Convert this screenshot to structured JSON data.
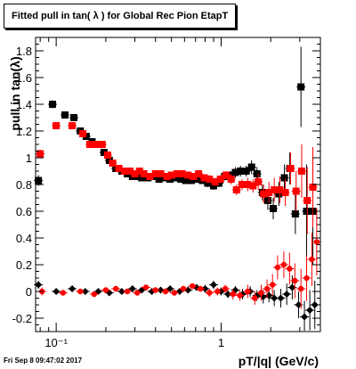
{
  "title": "Fitted pull in tan( λ ) for Global Rec Pion EtapT",
  "footer_timestamp": "Fri Sep  8 09:47:02 2017",
  "chart_data": {
    "type": "scatter",
    "title": "Fitted pull in tan( λ ) for Global Rec Pion EtapT",
    "xlabel": "pT/|q| (GeV/c)",
    "ylabel": "pull in tan(λ)",
    "x_scale": "log",
    "xlim": [
      0.075,
      4.0
    ],
    "ylim": [
      -0.3,
      1.9
    ],
    "grid": false,
    "y_ticks": [
      "-0.2",
      "0",
      "0.2",
      "0.4",
      "0.6",
      "0.8",
      "1",
      "1.2",
      "1.4",
      "1.6",
      "1.8"
    ],
    "x_tick_labels": [
      {
        "x": 0.1,
        "label": "10⁻¹"
      },
      {
        "x": 1,
        "label": "1"
      }
    ],
    "series": [
      {
        "color": "#000000",
        "marker": "square",
        "x": [
          0.078,
          0.095,
          0.113,
          0.128,
          0.14,
          0.152,
          0.165,
          0.18,
          0.195,
          0.21,
          0.23,
          0.25,
          0.27,
          0.29,
          0.31,
          0.33,
          0.36,
          0.39,
          0.42,
          0.45,
          0.49,
          0.53,
          0.57,
          0.61,
          0.66,
          0.71,
          0.77,
          0.83,
          0.9,
          0.97,
          1.05,
          1.13,
          1.22,
          1.31,
          1.42,
          1.53,
          1.65,
          1.78,
          1.92,
          2.07,
          2.24,
          2.42,
          2.61,
          2.82,
          3.05,
          3.3,
          3.6
        ],
        "y": [
          0.83,
          1.4,
          1.32,
          1.3,
          1.2,
          1.16,
          1.12,
          1.1,
          1.04,
          0.98,
          0.92,
          0.9,
          0.88,
          0.86,
          0.86,
          0.85,
          0.85,
          0.86,
          0.84,
          0.85,
          0.84,
          0.85,
          0.84,
          0.83,
          0.83,
          0.84,
          0.83,
          0.81,
          0.79,
          0.81,
          0.86,
          0.87,
          0.89,
          0.9,
          0.9,
          0.93,
          0.88,
          0.74,
          0.68,
          0.62,
          0.73,
          0.85,
          0.92,
          0.58,
          1.53,
          0.6,
          0.6
        ],
        "yerr": [
          0.04,
          0.03,
          0.02,
          0.02,
          0.02,
          0.015,
          0.015,
          0.015,
          0.015,
          0.015,
          0.015,
          0.015,
          0.015,
          0.015,
          0.015,
          0.015,
          0.015,
          0.015,
          0.015,
          0.015,
          0.02,
          0.02,
          0.02,
          0.02,
          0.02,
          0.02,
          0.02,
          0.03,
          0.03,
          0.03,
          0.03,
          0.03,
          0.04,
          0.04,
          0.04,
          0.05,
          0.05,
          0.06,
          0.07,
          0.08,
          0.09,
          0.1,
          0.12,
          0.15,
          0.3,
          0.35,
          0.4
        ]
      },
      {
        "color": "#ff0000",
        "marker": "square",
        "x": [
          0.08,
          0.1,
          0.125,
          0.145,
          0.16,
          0.175,
          0.19,
          0.205,
          0.22,
          0.24,
          0.26,
          0.28,
          0.3,
          0.32,
          0.34,
          0.37,
          0.4,
          0.43,
          0.47,
          0.5,
          0.54,
          0.58,
          0.63,
          0.68,
          0.73,
          0.79,
          0.85,
          0.92,
          0.99,
          1.07,
          1.15,
          1.24,
          1.34,
          1.45,
          1.56,
          1.68,
          1.81,
          1.95,
          2.1,
          2.27,
          2.45,
          2.64,
          2.85,
          3.08,
          3.33,
          3.6
        ],
        "y": [
          1.03,
          1.24,
          1.24,
          1.18,
          1.1,
          1.1,
          1.1,
          1.02,
          0.96,
          0.92,
          0.9,
          0.9,
          0.88,
          0.9,
          0.88,
          0.86,
          0.88,
          0.88,
          0.86,
          0.87,
          0.88,
          0.88,
          0.87,
          0.86,
          0.88,
          0.85,
          0.84,
          0.82,
          0.84,
          0.87,
          0.84,
          0.76,
          0.8,
          0.8,
          0.79,
          0.82,
          0.73,
          0.74,
          0.76,
          0.76,
          0.74,
          0.92,
          0.75,
          0.9,
          0.68,
          0.78
        ],
        "yerr": [
          0.03,
          0.025,
          0.02,
          0.02,
          0.02,
          0.015,
          0.015,
          0.015,
          0.015,
          0.015,
          0.015,
          0.015,
          0.015,
          0.015,
          0.015,
          0.015,
          0.015,
          0.015,
          0.02,
          0.02,
          0.02,
          0.02,
          0.02,
          0.02,
          0.02,
          0.02,
          0.03,
          0.03,
          0.03,
          0.03,
          0.04,
          0.04,
          0.04,
          0.05,
          0.05,
          0.06,
          0.07,
          0.08,
          0.09,
          0.1,
          0.1,
          0.12,
          0.15,
          0.2,
          0.25,
          0.3
        ]
      },
      {
        "color": "#000000",
        "marker": "diamond",
        "x": [
          0.078,
          0.1,
          0.125,
          0.15,
          0.18,
          0.21,
          0.25,
          0.29,
          0.33,
          0.38,
          0.43,
          0.49,
          0.56,
          0.63,
          0.71,
          0.8,
          0.9,
          1.0,
          1.1,
          1.22,
          1.35,
          1.5,
          1.65,
          1.8,
          1.95,
          2.1,
          2.3,
          2.5,
          2.7,
          2.95,
          3.2,
          3.45,
          3.7
        ],
        "y": [
          0.05,
          0.0,
          0.02,
          0.0,
          0.0,
          -0.01,
          0.0,
          0.02,
          0.01,
          0.0,
          0.01,
          0.02,
          0.0,
          0.01,
          0.03,
          0.02,
          0.05,
          0.0,
          -0.02,
          0.01,
          -0.02,
          0.0,
          -0.03,
          -0.04,
          -0.03,
          -0.05,
          -0.05,
          -0.02,
          0.03,
          -0.1,
          -0.19,
          -0.14,
          -0.1
        ],
        "yerr": [
          0.03,
          0.02,
          0.02,
          0.02,
          0.02,
          0.02,
          0.02,
          0.02,
          0.02,
          0.02,
          0.02,
          0.02,
          0.02,
          0.02,
          0.02,
          0.03,
          0.03,
          0.03,
          0.03,
          0.03,
          0.04,
          0.04,
          0.04,
          0.05,
          0.05,
          0.06,
          0.07,
          0.08,
          0.09,
          0.1,
          0.12,
          0.15,
          0.18
        ]
      },
      {
        "color": "#ff0000",
        "marker": "circle",
        "x": [
          0.082,
          0.11,
          0.14,
          0.17,
          0.2,
          0.23,
          0.27,
          0.31,
          0.35,
          0.4,
          0.46,
          0.52,
          0.59,
          0.67,
          0.75,
          0.85,
          0.95,
          1.06,
          1.18,
          1.3,
          1.45,
          1.6,
          1.75,
          1.9,
          2.05,
          2.2,
          2.4,
          2.6,
          2.8,
          3.05,
          3.3,
          3.55,
          3.8
        ],
        "y": [
          0.0,
          -0.01,
          0.0,
          -0.02,
          0.01,
          0.02,
          0.0,
          -0.01,
          0.03,
          0.01,
          0.0,
          -0.01,
          0.02,
          0.04,
          0.02,
          -0.01,
          0.0,
          0.02,
          -0.02,
          -0.03,
          0.0,
          -0.05,
          -0.01,
          0.02,
          0.05,
          0.18,
          0.2,
          0.17,
          0.08,
          0.02,
          0.1,
          0.24,
          0.37
        ],
        "yerr": [
          0.03,
          0.02,
          0.02,
          0.02,
          0.02,
          0.02,
          0.02,
          0.02,
          0.02,
          0.02,
          0.02,
          0.02,
          0.02,
          0.02,
          0.02,
          0.03,
          0.03,
          0.03,
          0.04,
          0.04,
          0.05,
          0.05,
          0.06,
          0.07,
          0.08,
          0.09,
          0.1,
          0.12,
          0.13,
          0.15,
          0.17,
          0.2,
          0.25
        ]
      }
    ]
  }
}
